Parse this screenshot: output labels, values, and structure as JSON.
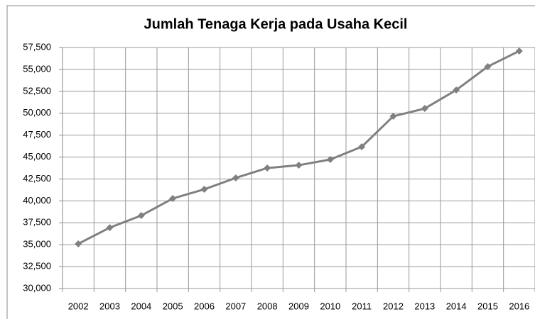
{
  "chart_data": {
    "type": "line",
    "title": "Jumlah Tenaga Kerja pada Usaha Kecil",
    "categories": [
      "2002",
      "2003",
      "2004",
      "2005",
      "2006",
      "2007",
      "2008",
      "2009",
      "2010",
      "2011",
      "2012",
      "2013",
      "2014",
      "2015",
      "2016"
    ],
    "series": [
      {
        "name": "Jumlah Tenaga Kerja",
        "color": "#808080",
        "values": [
          35100,
          36950,
          38330,
          40270,
          41320,
          42620,
          43750,
          44070,
          44720,
          46180,
          49650,
          50540,
          52650,
          55320,
          57100
        ]
      }
    ],
    "ylim": [
      30000,
      57500
    ],
    "yticks": [
      {
        "value": 30000,
        "label": "30,000"
      },
      {
        "value": 32500,
        "label": "32,500"
      },
      {
        "value": 35000,
        "label": "35,000"
      },
      {
        "value": 37500,
        "label": "37,500"
      },
      {
        "value": 40000,
        "label": "40,000"
      },
      {
        "value": 42500,
        "label": "42,500"
      },
      {
        "value": 45000,
        "label": "45,000"
      },
      {
        "value": 47500,
        "label": "47,500"
      },
      {
        "value": 50000,
        "label": "50,000"
      },
      {
        "value": 52500,
        "label": "52,500"
      },
      {
        "value": 55000,
        "label": "55,000"
      },
      {
        "value": 57500,
        "label": "57,500"
      }
    ],
    "grid": true
  }
}
